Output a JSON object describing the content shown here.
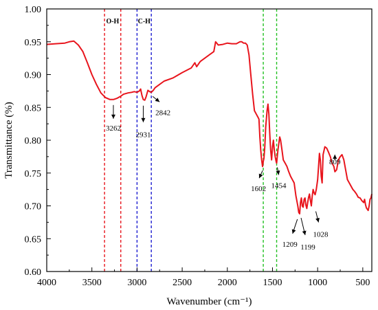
{
  "chart_data": {
    "type": "line",
    "xlabel": "Wavenumber (cm⁻¹)",
    "ylabel": "Transmittance (%)",
    "xlim": [
      4000,
      400
    ],
    "ylim": [
      0.6,
      1.0
    ],
    "x_reversed": true,
    "x_ticks": [
      "4000",
      "3500",
      "3000",
      "2500",
      "2000",
      "1500",
      "1000",
      "500"
    ],
    "y_ticks": [
      "0.60",
      "0.65",
      "0.70",
      "0.75",
      "0.80",
      "0.85",
      "0.90",
      "0.95",
      "1.00"
    ],
    "line_color": "#e8141c",
    "series": [
      {
        "x": [
          4000,
          3900,
          3800,
          3750,
          3700,
          3650,
          3600,
          3550,
          3500,
          3450,
          3400,
          3350,
          3300,
          3262,
          3220,
          3180,
          3150,
          3100,
          3060,
          3030,
          3000,
          2975,
          2960,
          2945,
          2931,
          2915,
          2900,
          2880,
          2860,
          2842,
          2820,
          2800,
          2750,
          2700,
          2600,
          2500,
          2400,
          2360,
          2340,
          2300,
          2200,
          2150,
          2130,
          2100,
          2050,
          2000,
          1950,
          1900,
          1860,
          1840,
          1820,
          1800,
          1780,
          1760,
          1740,
          1720,
          1700,
          1680,
          1660,
          1650,
          1640,
          1630,
          1620,
          1610,
          1602,
          1595,
          1585,
          1575,
          1560,
          1550,
          1540,
          1530,
          1520,
          1510,
          1500,
          1490,
          1480,
          1470,
          1460,
          1454,
          1440,
          1420,
          1410,
          1395,
          1380,
          1360,
          1340,
          1320,
          1300,
          1280,
          1260,
          1240,
          1220,
          1209,
          1199,
          1190,
          1180,
          1170,
          1160,
          1150,
          1140,
          1130,
          1120,
          1110,
          1100,
          1090,
          1080,
          1070,
          1060,
          1050,
          1040,
          1028,
          1015,
          1000,
          990,
          980,
          970,
          960,
          950,
          940,
          920,
          900,
          880,
          860,
          840,
          820,
          809,
          790,
          770,
          750,
          730,
          710,
          690,
          670,
          650,
          630,
          610,
          590,
          570,
          550,
          530,
          510,
          490,
          480,
          470,
          460,
          450,
          440,
          430,
          420,
          410,
          400
        ],
        "y": [
          0.946,
          0.947,
          0.948,
          0.95,
          0.951,
          0.945,
          0.935,
          0.918,
          0.9,
          0.885,
          0.872,
          0.865,
          0.862,
          0.862,
          0.864,
          0.867,
          0.87,
          0.872,
          0.873,
          0.874,
          0.873,
          0.875,
          0.878,
          0.868,
          0.862,
          0.861,
          0.866,
          0.876,
          0.874,
          0.873,
          0.876,
          0.88,
          0.885,
          0.89,
          0.895,
          0.903,
          0.91,
          0.918,
          0.912,
          0.92,
          0.93,
          0.935,
          0.95,
          0.945,
          0.946,
          0.948,
          0.947,
          0.947,
          0.95,
          0.95,
          0.948,
          0.948,
          0.945,
          0.93,
          0.9,
          0.87,
          0.845,
          0.84,
          0.835,
          0.832,
          0.805,
          0.785,
          0.77,
          0.76,
          0.768,
          0.772,
          0.79,
          0.82,
          0.845,
          0.855,
          0.84,
          0.81,
          0.785,
          0.77,
          0.79,
          0.8,
          0.785,
          0.775,
          0.768,
          0.765,
          0.785,
          0.805,
          0.8,
          0.785,
          0.77,
          0.765,
          0.76,
          0.752,
          0.745,
          0.74,
          0.735,
          0.715,
          0.7,
          0.69,
          0.688,
          0.705,
          0.712,
          0.7,
          0.698,
          0.71,
          0.712,
          0.701,
          0.696,
          0.705,
          0.713,
          0.718,
          0.708,
          0.7,
          0.715,
          0.725,
          0.72,
          0.717,
          0.725,
          0.74,
          0.76,
          0.78,
          0.77,
          0.745,
          0.735,
          0.778,
          0.79,
          0.788,
          0.782,
          0.775,
          0.765,
          0.76,
          0.752,
          0.755,
          0.77,
          0.775,
          0.778,
          0.77,
          0.755,
          0.74,
          0.735,
          0.73,
          0.725,
          0.722,
          0.718,
          0.713,
          0.712,
          0.708,
          0.705,
          0.71,
          0.702,
          0.697,
          0.695,
          0.693,
          0.7,
          0.71,
          0.712,
          0.718
        ]
      }
    ],
    "vlines": [
      {
        "x": 3360,
        "color": "#e8141c"
      },
      {
        "x": 3180,
        "color": "#e8141c"
      },
      {
        "x": 3000,
        "color": "#1c1cd0"
      },
      {
        "x": 2842,
        "color": "#1c1cd0"
      },
      {
        "x": 1602,
        "color": "#22c022"
      },
      {
        "x": 1454,
        "color": "#22c022"
      }
    ],
    "band_labels": [
      {
        "text": "O-H",
        "x": 3270
      },
      {
        "text": "C-H",
        "x": 2921
      }
    ],
    "annotations": [
      {
        "text": "3262",
        "x": 3262,
        "y": 0.862
      },
      {
        "text": "2931",
        "x": 2931,
        "y": 0.861
      },
      {
        "text": "2842",
        "x": 2842,
        "y": 0.873
      },
      {
        "text": "1602",
        "x": 1602,
        "y": 0.76
      },
      {
        "text": "1454",
        "x": 1454,
        "y": 0.765
      },
      {
        "text": "1209",
        "x": 1209,
        "y": 0.688
      },
      {
        "text": "1199",
        "x": 1199,
        "y": 0.69
      },
      {
        "text": "1028",
        "x": 1028,
        "y": 0.699
      },
      {
        "text": "809",
        "x": 809,
        "y": 0.755
      }
    ]
  }
}
